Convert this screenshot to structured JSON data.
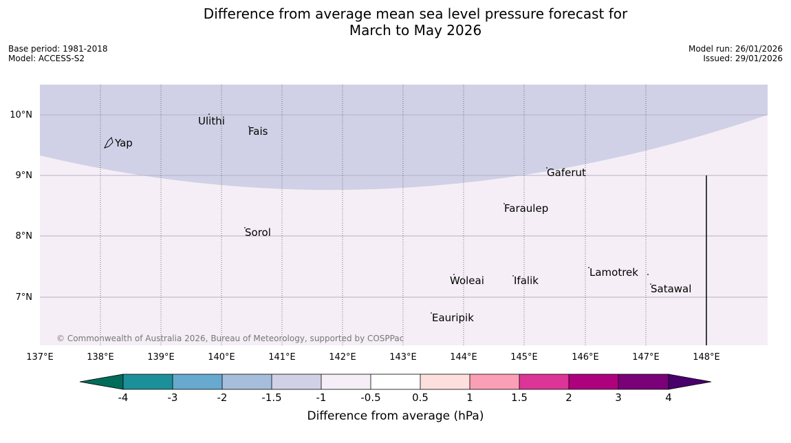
{
  "title": {
    "line1": "Difference from average mean sea level pressure forecast for",
    "line2": "March to May 2026"
  },
  "meta": {
    "base_period": "Base period: 1981-2018",
    "model": "Model: ACCESS-S2",
    "model_run": "Model run: 26/01/2026",
    "issued": "Issued: 29/01/2026"
  },
  "map": {
    "lon_labels": [
      "137°E",
      "138°E",
      "139°E",
      "140°E",
      "141°E",
      "142°E",
      "143°E",
      "144°E",
      "145°E",
      "146°E",
      "147°E",
      "148°E"
    ],
    "lat_labels": [
      "10°N",
      "9°N",
      "8°N",
      "7°N"
    ],
    "places": [
      {
        "name": "Yap"
      },
      {
        "name": "Ulithi"
      },
      {
        "name": "Fais"
      },
      {
        "name": "Gaferut"
      },
      {
        "name": "Faraulep"
      },
      {
        "name": "Sorol"
      },
      {
        "name": "Lamotrek"
      },
      {
        "name": "Woleai"
      },
      {
        "name": "Ifalik"
      },
      {
        "name": "Satawal"
      },
      {
        "name": "Eauripik"
      }
    ],
    "copyright": "© Commonwealth of Australia 2026, Bureau of Meteorology, supported by COSPPac",
    "fill_colors": {
      "north_region": "#d0d1e6",
      "south_region": "#f5eef6"
    }
  },
  "colorbar": {
    "label": "Difference from average (hPa)",
    "ticks": [
      "-4",
      "-3",
      "-2",
      "-1.5",
      "-1",
      "-0.5",
      "0.5",
      "1",
      "1.5",
      "2",
      "3",
      "4"
    ],
    "colors": [
      "#016c59",
      "#1c9099",
      "#67a9cf",
      "#a6bddb",
      "#d0d1e6",
      "#f5eef6",
      "#ffffff",
      "#fde0dd",
      "#fa9fb5",
      "#dd3497",
      "#ae017e",
      "#7a0177",
      "#49006a"
    ]
  }
}
